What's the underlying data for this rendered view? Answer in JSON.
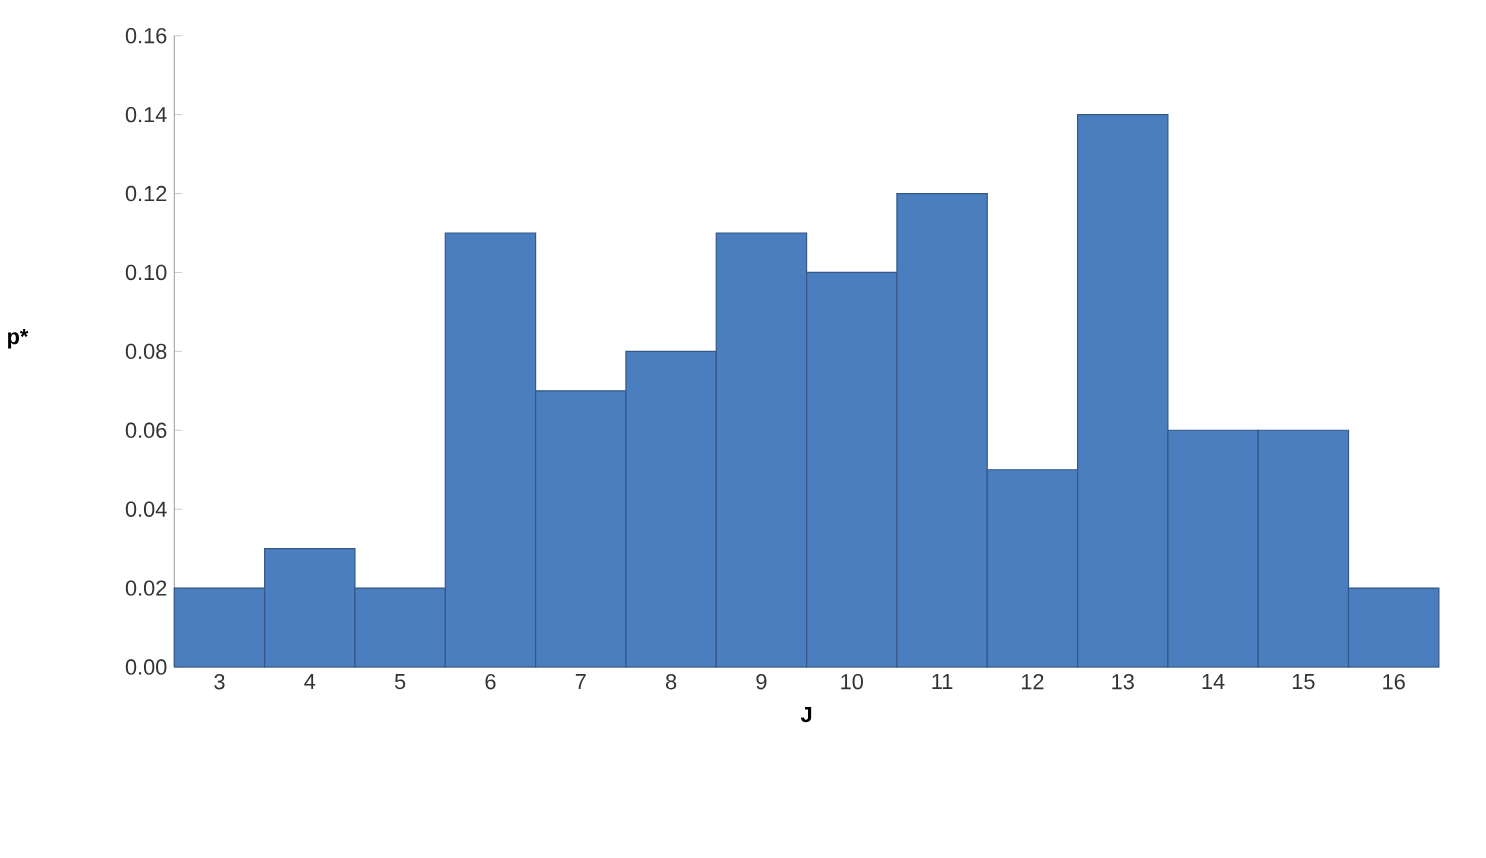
{
  "chart_data": {
    "type": "bar",
    "xlabel": "J",
    "ylabel": "p*",
    "categories": [
      "3",
      "4",
      "5",
      "6",
      "7",
      "8",
      "9",
      "10",
      "11",
      "12",
      "13",
      "14",
      "15",
      "16"
    ],
    "values": [
      0.02,
      0.03,
      0.02,
      0.11,
      0.07,
      0.08,
      0.11,
      0.1,
      0.12,
      0.05,
      0.14,
      0.06,
      0.06,
      0.02
    ],
    "color": "#4a7ebf",
    "ylim": [
      0,
      0.16
    ],
    "yticks": [
      {
        "value": 0,
        "label": "0.00"
      },
      {
        "value": 0.02,
        "label": "0.02"
      },
      {
        "value": 0.04,
        "label": "0.04"
      },
      {
        "value": 0.06,
        "label": "0.06"
      },
      {
        "value": 0.08,
        "label": "0.08"
      },
      {
        "value": 0.1,
        "label": "0.10"
      },
      {
        "value": 0.12,
        "label": "0.12"
      },
      {
        "value": 0.14,
        "label": "0.14"
      },
      {
        "value": 0.16,
        "label": "0.16"
      }
    ]
  }
}
